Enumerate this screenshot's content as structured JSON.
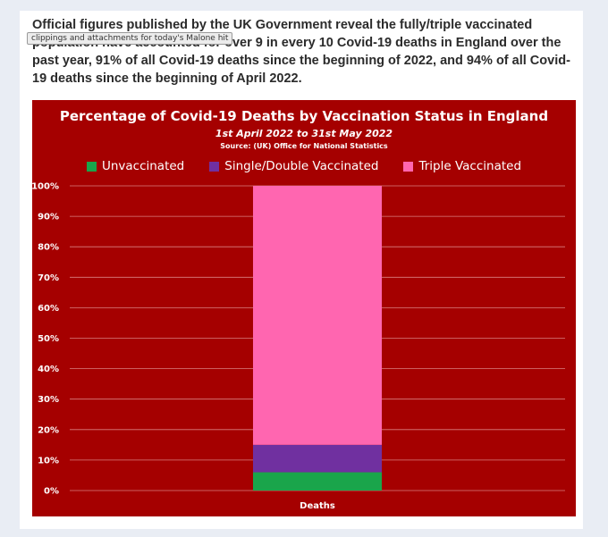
{
  "post": {
    "headline": "Official figures published by the UK Government reveal the fully/triple vaccinated population have accounted for over 9 in every 10 Covid-19 deaths in England over the past year, 91% of all Covid-19 deaths since the beginning of 2022, and 94% of all Covid-19 deaths since the beginning of April 2022.",
    "tooltip": "clippings and attachments for today's Malone hit"
  },
  "colors": {
    "chart_bg": "#a50000",
    "unvaccinated": "#1aa54b",
    "single_double": "#7030a0",
    "triple": "#ff66b0",
    "gridline": "#d98080"
  },
  "chart_data": {
    "type": "bar",
    "stacked": true,
    "title": "Percentage of Covid-19 Deaths by Vaccination Status in England",
    "subtitle": "1st April 2022 to 31st May 2022",
    "source": "Source: (UK) Office for National Statistics",
    "categories": [
      "Deaths"
    ],
    "series": [
      {
        "name": "Unvaccinated",
        "values": [
          6
        ]
      },
      {
        "name": "Single/Double Vaccinated",
        "values": [
          9
        ]
      },
      {
        "name": "Triple Vaccinated",
        "values": [
          85
        ]
      }
    ],
    "ylim": [
      0,
      100
    ],
    "yticks": [
      "0%",
      "10%",
      "20%",
      "30%",
      "40%",
      "50%",
      "60%",
      "70%",
      "80%",
      "90%",
      "100%"
    ],
    "grid": true,
    "legend": "top"
  }
}
